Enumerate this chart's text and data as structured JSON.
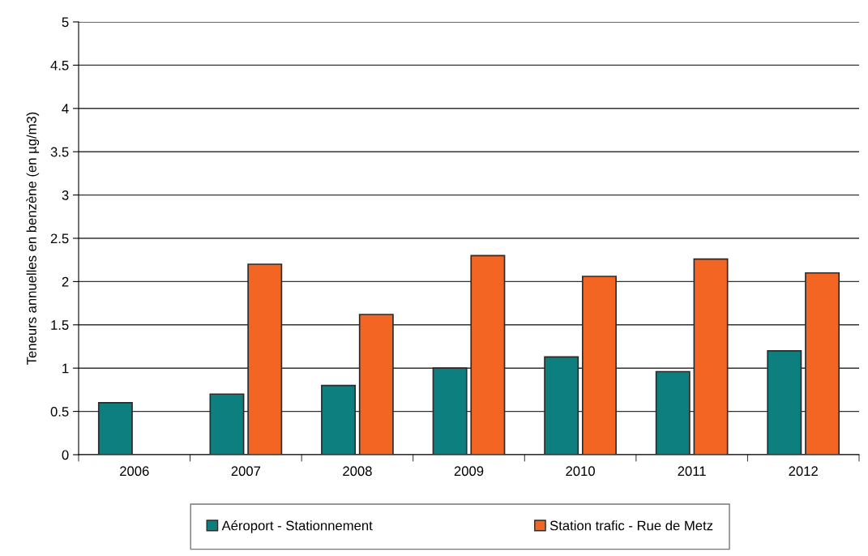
{
  "chart_data": {
    "type": "bar",
    "ylabel": "Teneurs annuelles en benzène (en µg/m3)",
    "categories": [
      "2006",
      "2007",
      "2008",
      "2009",
      "2010",
      "2011",
      "2012"
    ],
    "series": [
      {
        "name": "Aéroport - Stationnement",
        "color": "#0e7f7f",
        "values": [
          0.6,
          0.7,
          0.8,
          1.0,
          1.13,
          0.96,
          1.2
        ]
      },
      {
        "name": "Station trafic - Rue de Metz",
        "color": "#f26522",
        "values": [
          null,
          2.2,
          1.62,
          2.3,
          2.06,
          2.26,
          2.1
        ]
      }
    ],
    "ylim": [
      0,
      5
    ],
    "yticks": [
      0,
      0.5,
      1,
      1.5,
      2,
      2.5,
      3,
      3.5,
      4,
      4.5,
      5
    ],
    "grid": "y",
    "legend": "bottom"
  }
}
